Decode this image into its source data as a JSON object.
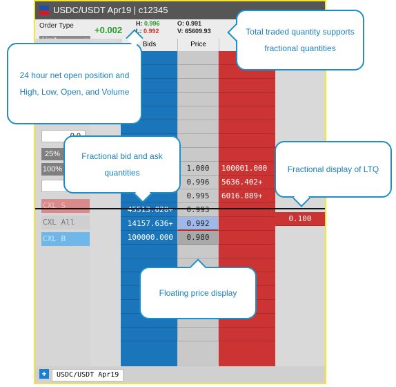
{
  "window": {
    "title": "USDC/USDT Apr19 | c12345",
    "symbol_tab": "USDC/USDT Apr19"
  },
  "header": {
    "order_type_label": "Order Type",
    "order_type_value": "Limit",
    "net_position": "+0.002",
    "high_label": "H:",
    "high": "0.996",
    "low_label": "L:",
    "low": "0.992",
    "open_label": "O:",
    "open": "0.991",
    "volume_label": "V:",
    "volume": "65609.93"
  },
  "columns": {
    "bids": "Bids",
    "price": "Price"
  },
  "left_panel": {
    "qty_top": "0.0",
    "pct25": "25%",
    "pct100": "100%",
    "qty_bottom": "0.",
    "cxl_s": "CXL S",
    "cxl_all": "CXL All",
    "cxl_b": "CXL B"
  },
  "ladder": {
    "prices": [
      "",
      "",
      "",
      "",
      "",
      "",
      "",
      "",
      "1.000",
      "0.996",
      "0.995",
      "0.993",
      "0.992",
      "0.980",
      "",
      "",
      "",
      "",
      "",
      "",
      ""
    ],
    "bids": [
      "",
      "",
      "",
      "",
      "",
      "",
      "",
      "",
      "",
      "",
      "",
      "45513.020+",
      "14157.636+",
      "100000.000",
      "",
      "",
      "",
      "",
      "",
      "",
      ""
    ],
    "asks": [
      "",
      "",
      "",
      "",
      "",
      "",
      "",
      "",
      "100001.000",
      "5636.402+",
      "6016.889+",
      "",
      "",
      "",
      "",
      "",
      "",
      "",
      "",
      "",
      ""
    ],
    "ltq": "0.100"
  },
  "callouts": {
    "net_position": "24 hour net open position and High, Low, Open, and Volume",
    "volume": "Total traded quantity supports fractional quantities",
    "bid_ask_qty": "Fractional bid and ask quantities",
    "ltq": "Fractional display of LTQ",
    "floating_price": "Floating price display"
  },
  "colors": {
    "bid": "#1b75bb",
    "ask": "#cc3333",
    "price_bg": "#c9c9c9",
    "accent": "#1d8fc4"
  }
}
